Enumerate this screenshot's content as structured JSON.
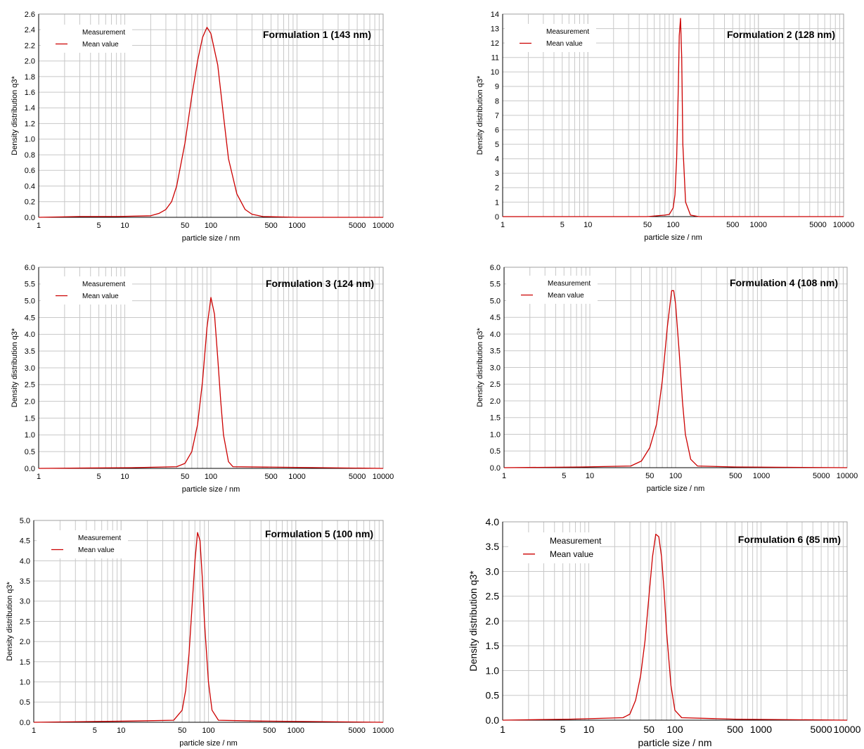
{
  "chart_data": [
    {
      "type": "line",
      "title": "Formulation 1 (143 nm)",
      "xlabel": "particle size / nm",
      "ylabel": "Density distribution q3*",
      "x_scale": "log",
      "xlim": [
        1,
        10000
      ],
      "ylim": [
        0,
        2.6
      ],
      "x_ticks": [
        1,
        5,
        10,
        50,
        100,
        500,
        1000,
        5000,
        10000
      ],
      "y_ticks": [
        "0.0",
        "0.2",
        "0.4",
        "0.6",
        "0.8",
        "1.0",
        "1.2",
        "1.4",
        "1.6",
        "1.8",
        "2.0",
        "2.2",
        "2.4",
        "2.6"
      ],
      "legend": {
        "position": "top-left",
        "entries": [
          "Measurement",
          "Mean value"
        ]
      },
      "series": [
        {
          "name": "Mean value",
          "color": "#cc0000",
          "x": [
            1,
            3,
            8,
            20,
            25,
            30,
            35,
            40,
            50,
            60,
            70,
            80,
            90,
            100,
            120,
            140,
            160,
            200,
            250,
            300,
            400,
            1000,
            10000
          ],
          "y": [
            0,
            0.01,
            0.01,
            0.02,
            0.05,
            0.1,
            0.2,
            0.4,
            0.95,
            1.55,
            2.0,
            2.3,
            2.43,
            2.35,
            1.95,
            1.3,
            0.75,
            0.3,
            0.1,
            0.04,
            0.01,
            0,
            0
          ]
        }
      ]
    },
    {
      "type": "line",
      "title": "Formulation 2 (128 nm)",
      "xlabel": "particle size / nm",
      "ylabel": "Density distribution q3*",
      "x_scale": "log",
      "xlim": [
        1,
        10000
      ],
      "ylim": [
        0,
        14
      ],
      "x_ticks": [
        1,
        5,
        10,
        50,
        100,
        500,
        1000,
        5000,
        10000
      ],
      "y_ticks": [
        "0",
        "1",
        "2",
        "3",
        "4",
        "5",
        "6",
        "7",
        "8",
        "9",
        "10",
        "11",
        "12",
        "13",
        "14"
      ],
      "legend": {
        "position": "top-left",
        "entries": [
          "Measurement",
          "Mean value"
        ]
      },
      "series": [
        {
          "name": "Mean value",
          "color": "#cc0000",
          "x": [
            1,
            50,
            80,
            90,
            100,
            105,
            110,
            115,
            118,
            122,
            126,
            130,
            140,
            160,
            200,
            10000
          ],
          "y": [
            0,
            0,
            0.1,
            0.15,
            0.6,
            1.5,
            4,
            9,
            12.5,
            13.7,
            11,
            5,
            1,
            0.1,
            0,
            0
          ]
        }
      ]
    },
    {
      "type": "line",
      "title": "Formulation 3 (124 nm)",
      "xlabel": "particle size / nm",
      "ylabel": "Density distribution q3*",
      "x_scale": "log",
      "xlim": [
        1,
        10000
      ],
      "ylim": [
        0,
        6.0
      ],
      "x_ticks": [
        1,
        5,
        10,
        50,
        100,
        500,
        1000,
        5000,
        10000
      ],
      "y_ticks": [
        "0.0",
        "0.5",
        "1.0",
        "1.5",
        "2.0",
        "2.5",
        "3.0",
        "3.5",
        "4.0",
        "4.5",
        "5.0",
        "5.5",
        "6.0"
      ],
      "legend": {
        "position": "top-left",
        "entries": [
          "Measurement",
          "Mean value"
        ]
      },
      "series": [
        {
          "name": "Mean value",
          "color": "#cc0000",
          "x": [
            1,
            12,
            40,
            50,
            60,
            70,
            80,
            90,
            100,
            110,
            120,
            130,
            140,
            160,
            180,
            10000
          ],
          "y": [
            0,
            0.02,
            0.05,
            0.15,
            0.5,
            1.3,
            2.6,
            4.2,
            5.1,
            4.6,
            3.3,
            2.0,
            1.0,
            0.2,
            0.05,
            0
          ]
        }
      ]
    },
    {
      "type": "line",
      "title": "Formulation 4 (108 nm)",
      "xlabel": "particle size / nm",
      "ylabel": "Density distribution q3*",
      "x_scale": "log",
      "xlim": [
        1,
        10000
      ],
      "ylim": [
        0,
        6.0
      ],
      "x_ticks": [
        1,
        5,
        10,
        50,
        100,
        500,
        1000,
        5000,
        10000
      ],
      "y_ticks": [
        "0.0",
        "0.5",
        "1.0",
        "1.5",
        "2.0",
        "2.5",
        "3.0",
        "3.5",
        "4.0",
        "4.5",
        "5.0",
        "5.5",
        "6.0"
      ],
      "legend": {
        "position": "top-left",
        "entries": [
          "Measurement",
          "Mean value"
        ]
      },
      "series": [
        {
          "name": "Mean value",
          "color": "#cc0000",
          "x": [
            1,
            8,
            30,
            40,
            50,
            60,
            70,
            80,
            90,
            95,
            100,
            110,
            120,
            130,
            150,
            180,
            500,
            10000
          ],
          "y": [
            0,
            0.02,
            0.05,
            0.2,
            0.6,
            1.3,
            2.6,
            4.2,
            5.3,
            5.3,
            4.9,
            3.5,
            2.0,
            1.0,
            0.25,
            0.05,
            0.02,
            0
          ]
        }
      ]
    },
    {
      "type": "line",
      "title": "Formulation 5 (100 nm)",
      "xlabel": "particle size / nm",
      "ylabel": "Density distribution q3*",
      "x_scale": "log",
      "xlim": [
        1,
        10000
      ],
      "ylim": [
        0,
        5.0
      ],
      "x_ticks": [
        1,
        5,
        10,
        50,
        100,
        500,
        1000,
        5000,
        10000
      ],
      "y_ticks": [
        "0.0",
        "0.5",
        "1.0",
        "1.5",
        "2.0",
        "2.5",
        "3.0",
        "3.5",
        "4.0",
        "4.5",
        "5.0"
      ],
      "legend": {
        "position": "top-left",
        "entries": [
          "Measurement",
          "Mean value"
        ]
      },
      "series": [
        {
          "name": "Mean value",
          "color": "#cc0000",
          "x": [
            1,
            12,
            40,
            50,
            55,
            60,
            65,
            70,
            75,
            80,
            85,
            90,
            100,
            110,
            130,
            400,
            10000
          ],
          "y": [
            0,
            0.03,
            0.05,
            0.3,
            0.8,
            1.7,
            2.9,
            4.0,
            4.7,
            4.5,
            3.6,
            2.5,
            1.0,
            0.3,
            0.05,
            0.03,
            0
          ]
        }
      ]
    },
    {
      "type": "line",
      "title": "Formulation 6 (85 nm)",
      "xlabel": "particle size / nm",
      "ylabel": "Density distribution q3*",
      "x_scale": "log",
      "xlim": [
        1,
        10000
      ],
      "ylim": [
        0,
        4.0
      ],
      "x_ticks": [
        1,
        5,
        10,
        50,
        100,
        500,
        1000,
        5000,
        10000
      ],
      "y_ticks": [
        "0.0",
        "0.5",
        "1.0",
        "1.5",
        "2.0",
        "2.5",
        "3.0",
        "3.5",
        "4.0"
      ],
      "legend": {
        "position": "top-left",
        "entries": [
          "Measurement",
          "Mean value"
        ]
      },
      "series": [
        {
          "name": "Mean value",
          "color": "#cc0000",
          "x": [
            1,
            6,
            25,
            30,
            35,
            40,
            45,
            50,
            55,
            60,
            65,
            70,
            75,
            80,
            90,
            100,
            120,
            500,
            10000
          ],
          "y": [
            0,
            0.02,
            0.05,
            0.12,
            0.4,
            0.9,
            1.6,
            2.5,
            3.3,
            3.75,
            3.7,
            3.3,
            2.6,
            1.8,
            0.7,
            0.2,
            0.05,
            0.02,
            0
          ]
        }
      ]
    }
  ]
}
